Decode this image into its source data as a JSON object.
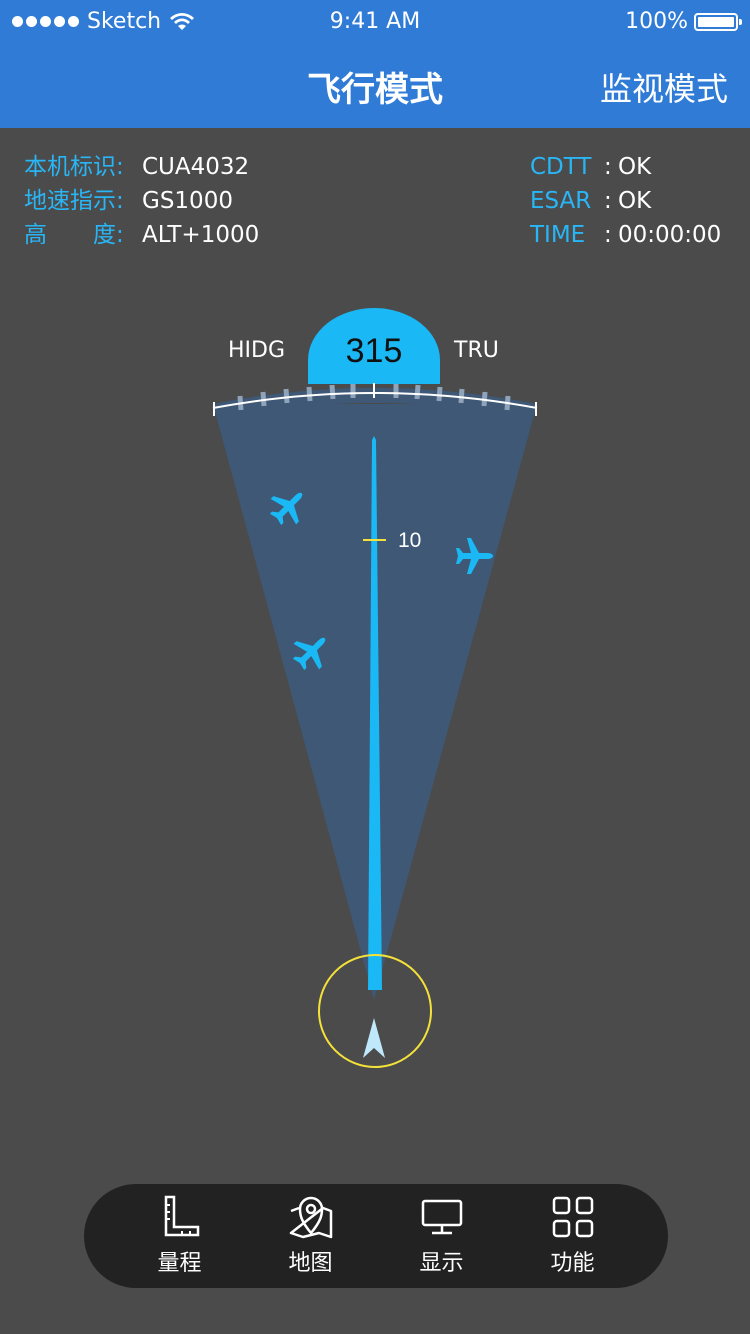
{
  "status_bar": {
    "carrier": "Sketch",
    "time": "9:41 AM",
    "battery": "100%"
  },
  "header": {
    "title": "飞行模式",
    "right_action": "监视模式"
  },
  "info_left": [
    {
      "label": "本机标识:",
      "value": "CUA4032"
    },
    {
      "label": "地速指示:",
      "value": "GS1000"
    },
    {
      "label": "高　　度:",
      "value": "ALT+1000"
    }
  ],
  "info_right": [
    {
      "label": "CDTT",
      "value": "OK"
    },
    {
      "label": "ESAR",
      "value": "OK"
    },
    {
      "label": "TIME",
      "value": "00:00:00"
    }
  ],
  "radar": {
    "heading": "315",
    "left_label": "HIDG",
    "right_label": "TRU",
    "range_mark": "10",
    "colors": {
      "accent": "#1ab8f5",
      "cone": "#3e5876",
      "ring": "#f4e13a"
    }
  },
  "bottom_nav": [
    {
      "label": "量程",
      "icon": "ruler-icon"
    },
    {
      "label": "地图",
      "icon": "map-icon"
    },
    {
      "label": "显示",
      "icon": "monitor-icon"
    },
    {
      "label": "功能",
      "icon": "grid-icon"
    }
  ]
}
